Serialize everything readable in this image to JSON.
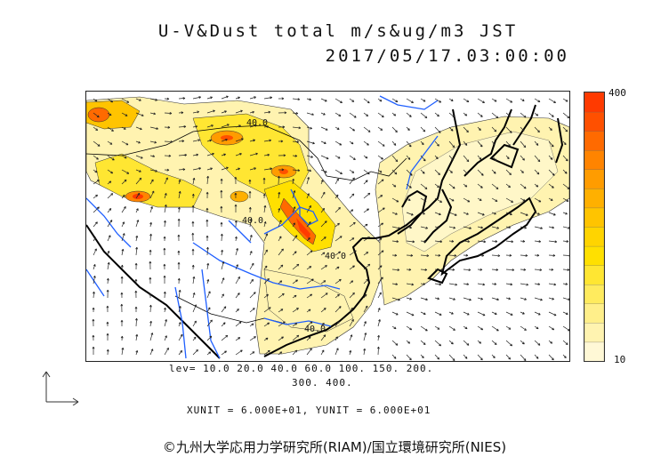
{
  "title": {
    "line1": "U-V&Dust total m/s&ug/m3 JST",
    "line2": "2017/05/17.03:00:00"
  },
  "colorbar": {
    "max_label": "400",
    "min_label": "10",
    "colors": [
      "#fff8d6",
      "#fff3b0",
      "#ffef8a",
      "#ffeb5e",
      "#ffe632",
      "#ffe000",
      "#ffd400",
      "#ffc400",
      "#ffb000",
      "#ff9c00",
      "#ff8400",
      "#ff6a00",
      "#ff5000",
      "#ff3a00"
    ]
  },
  "contour_levels": {
    "line1": "lev= 10.0 20.0 40.0 60.0 100. 150. 200.",
    "line2": "300. 400."
  },
  "units": "XUNIT = 6.000E+01, YUNIT = 6.000E+01",
  "credit": "©九州大学応用力学研究所(RIAM)/国立環境研究所(NIES)",
  "contour_labels": [
    "40.0",
    "40.0",
    "40.0",
    "40.0"
  ],
  "legend_colors": {
    "coastline": "#000000",
    "rivers": "#1f5fff",
    "dust_low": "#fff3b0",
    "dust_high": "#ff3a00"
  }
}
